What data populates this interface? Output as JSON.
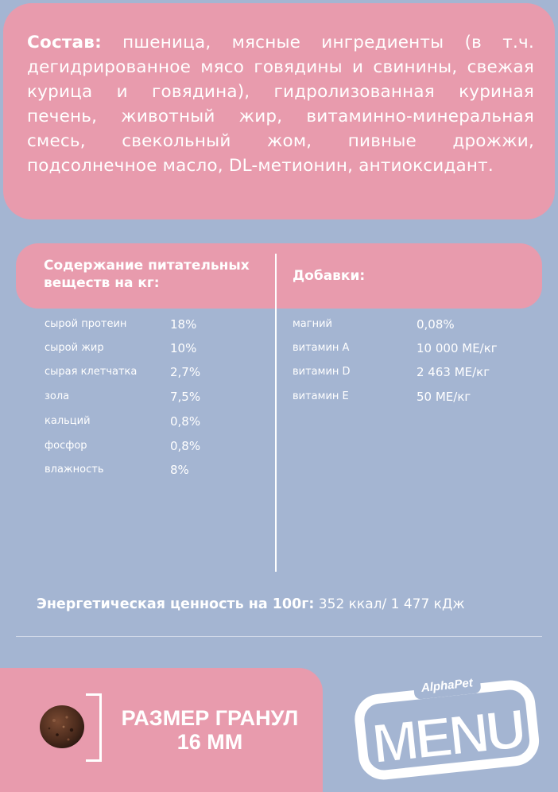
{
  "composition": {
    "label": "Состав:",
    "text": " пшеница, мясные ингредиенты (в т.ч. дегидрированное мясо говядины и свинины, свежая курица и говядина), гидролизованная куриная печень, животный жир, витаминно-минеральная смесь, свекольный жом, пивные дрожжи, подсолнечное масло, DL-метионин, антиоксидант."
  },
  "nutrients": {
    "title_line1": "Содержание питательных",
    "title_line2": "веществ на кг:",
    "items": [
      {
        "name": "сырой протеин",
        "value": "18%"
      },
      {
        "name": "сырой жир",
        "value": "10%"
      },
      {
        "name": "сырая клетчатка",
        "value": "2,7%"
      },
      {
        "name": "зола",
        "value": "7,5%"
      },
      {
        "name": "кальций",
        "value": "0,8%"
      },
      {
        "name": "фосфор",
        "value": "0,8%"
      },
      {
        "name": "влажность",
        "value": "8%"
      }
    ]
  },
  "additives": {
    "title": "Добавки:",
    "items": [
      {
        "name": "магний",
        "value": "0,08%"
      },
      {
        "name": "витамин А",
        "value": "10 000 МЕ/кг"
      },
      {
        "name": "витамин D",
        "value": "2 463 МЕ/кг"
      },
      {
        "name": "витамин Е",
        "value": "50 МЕ/кг"
      }
    ]
  },
  "energy": {
    "label": "Энергетическая ценность на 100г:",
    "value": " 352 ккал/ 1 477 кДж"
  },
  "granule": {
    "line1": "РАЗМЕР ГРАНУЛ",
    "line2": "16 ММ"
  },
  "logo": {
    "brand": "AlphaPet",
    "name": "MENU"
  },
  "colors": {
    "background": "#a4b5d2",
    "panel": "#e89bad",
    "text": "#ffffff"
  }
}
